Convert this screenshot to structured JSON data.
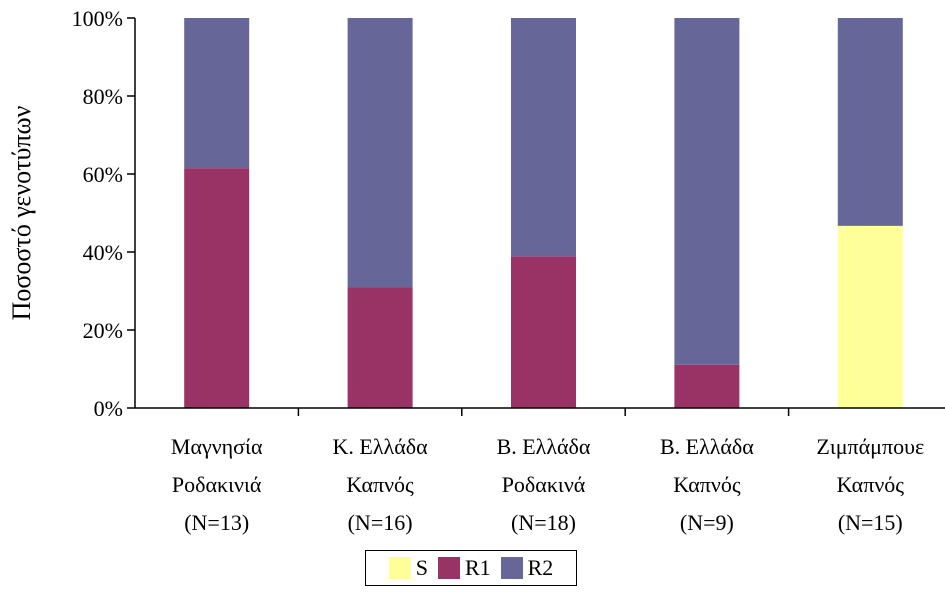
{
  "chart_data": {
    "type": "bar",
    "stacked": true,
    "ylabel": "Ποσοστό γενοτύπων",
    "xlabel": "",
    "ylim": [
      0,
      100
    ],
    "yticks": [
      "0%",
      "20%",
      "40%",
      "60%",
      "80%",
      "100%"
    ],
    "grid": false,
    "legend_position": "bottom",
    "categories": [
      [
        "Μαγνησία",
        "Ροδακινιά",
        "(N=13)"
      ],
      [
        "Κ. Ελλάδα",
        "Καπνός",
        "(N=16)"
      ],
      [
        "Β. Ελλάδα",
        "Ροδακινά",
        "(N=18)"
      ],
      [
        "Β. Ελλάδα",
        "Καπνός",
        "(N=9)"
      ],
      [
        "Ζιμπάμπουε",
        "Καπνός",
        "(N=15)"
      ]
    ],
    "series": [
      {
        "name": "S",
        "color": "#ffff99",
        "values": [
          0,
          0,
          0,
          0,
          46.7
        ]
      },
      {
        "name": "R1",
        "color": "#993366",
        "values": [
          61.5,
          31.0,
          38.9,
          11.1,
          0
        ]
      },
      {
        "name": "R2",
        "color": "#666699",
        "values": [
          38.5,
          69.0,
          61.1,
          88.9,
          53.3
        ]
      }
    ]
  }
}
